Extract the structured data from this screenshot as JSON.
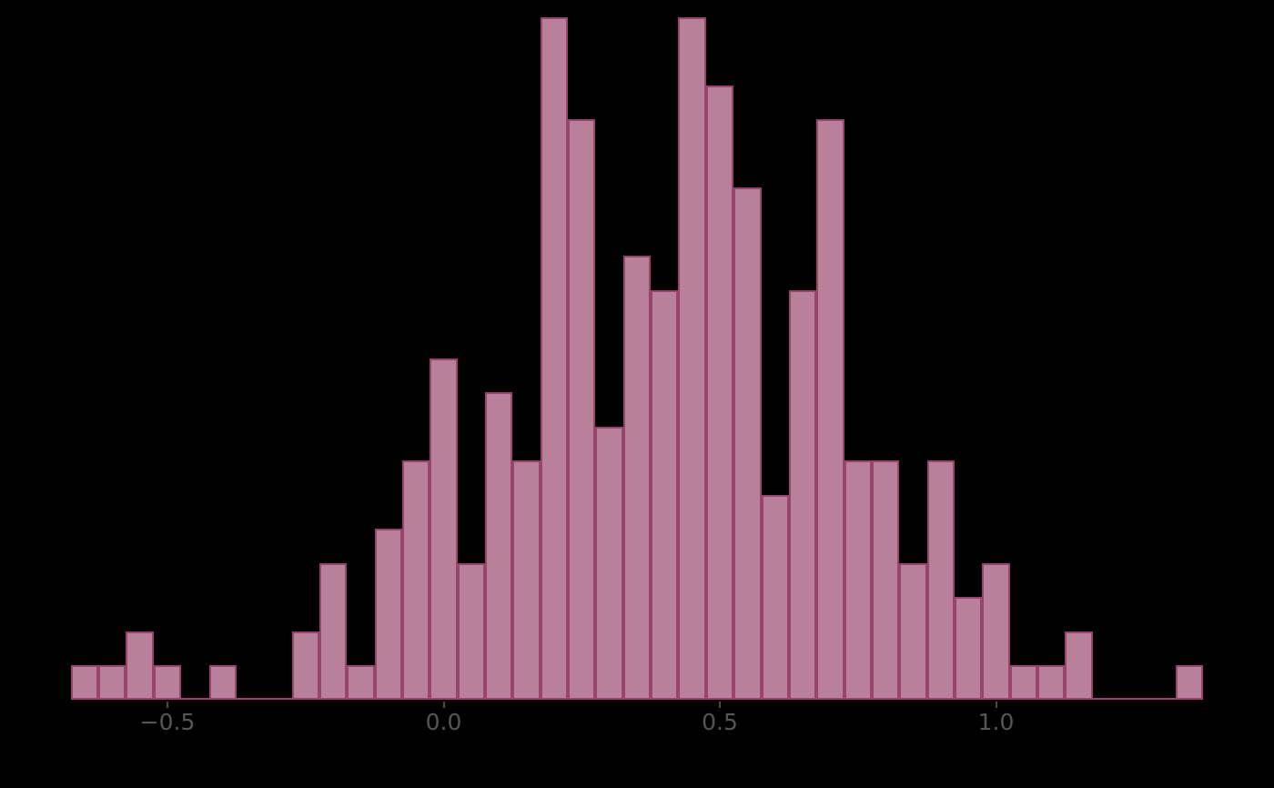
{
  "colors": {
    "background": "#000000",
    "bar_fill": "#b9809c",
    "bar_edge": "#98446c",
    "tick_mark": "#4a4a4a",
    "tick_label": "#565656"
  },
  "chart_data": {
    "type": "bar",
    "subtype": "histogram",
    "title": "",
    "xlabel": "",
    "ylabel": "",
    "legend": "none",
    "grid": "off",
    "bin_start": -0.675,
    "bin_width": 0.05,
    "n_bins": 41,
    "counts": [
      1,
      1,
      2,
      1,
      0,
      1,
      0,
      0,
      2,
      4,
      1,
      5,
      7,
      10,
      4,
      9,
      7,
      20,
      17,
      8,
      13,
      12,
      20,
      18,
      15,
      6,
      12,
      17,
      7,
      7,
      4,
      7,
      3,
      4,
      1,
      1,
      2,
      0,
      0,
      0,
      1
    ],
    "xlim": [
      -0.8,
      1.5
    ],
    "ylim": [
      0,
      21
    ],
    "x_ticks": [
      {
        "value": -0.5,
        "label": "−0.5"
      },
      {
        "value": 0.0,
        "label": "0.0"
      },
      {
        "value": 0.5,
        "label": "0.5"
      },
      {
        "value": 1.0,
        "label": "1.0"
      }
    ]
  }
}
